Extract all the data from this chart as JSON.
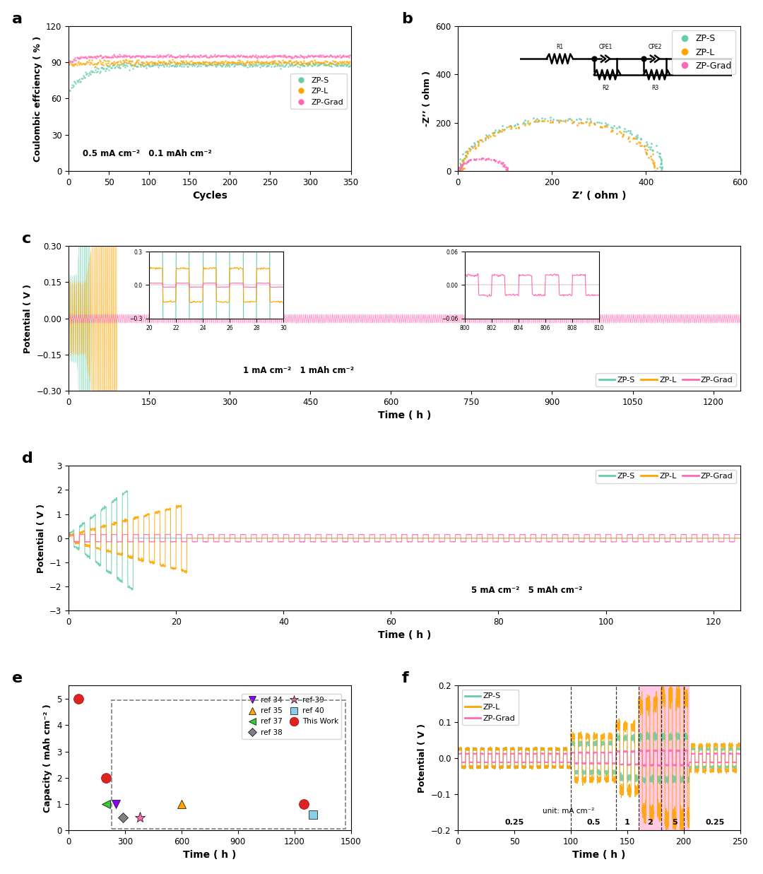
{
  "colors": {
    "ZP-S": "#66CDAA",
    "ZP-L": "#FFA500",
    "ZP-Grad": "#FF69B4"
  },
  "panel_a": {
    "xlabel": "Cycles",
    "ylabel": "Coulombic effciency ( % )",
    "ylim": [
      0,
      120
    ],
    "yticks": [
      0,
      30,
      60,
      90,
      120
    ],
    "xlim": [
      0,
      350
    ],
    "xticks": [
      0,
      50,
      100,
      150,
      200,
      250,
      300,
      350
    ],
    "annotation": "0.5 mA cm⁻²   0.1 mAh cm⁻²"
  },
  "panel_b": {
    "xlabel": "Z’ ( ohm )",
    "ylabel": "-Z’’ ( ohm )",
    "ylim": [
      0,
      600
    ],
    "yticks": [
      0,
      200,
      400,
      600
    ],
    "xlim": [
      0,
      600
    ],
    "xticks": [
      0,
      200,
      400,
      600
    ]
  },
  "panel_c": {
    "xlabel": "Time ( h )",
    "ylabel": "Potential ( V )",
    "ylim": [
      -0.3,
      0.3
    ],
    "yticks": [
      -0.3,
      -0.15,
      0.0,
      0.15,
      0.3
    ],
    "xlim": [
      0,
      1250
    ],
    "xticks": [
      0,
      150,
      300,
      450,
      600,
      750,
      900,
      1050,
      1200
    ],
    "annotation": "1 mA cm⁻²   1 mAh cm⁻²"
  },
  "panel_d": {
    "xlabel": "Time ( h )",
    "ylabel": "Potential ( V )",
    "ylim": [
      -3,
      3
    ],
    "yticks": [
      -3,
      -2,
      -1,
      0,
      1,
      2,
      3
    ],
    "xlim": [
      0,
      125
    ],
    "xticks": [
      0,
      20,
      40,
      60,
      80,
      100,
      120
    ],
    "annotation": "5 mA cm⁻²   5 mAh cm⁻²"
  },
  "panel_e": {
    "xlabel": "Time ( h )",
    "ylabel": "Capacity ( mAh cm⁻² )",
    "ylim": [
      0,
      5.5
    ],
    "yticks": [
      0,
      1,
      2,
      3,
      4,
      5
    ],
    "xlim": [
      0,
      1500
    ],
    "xticks": [
      0,
      300,
      600,
      900,
      1200,
      1500
    ]
  },
  "panel_f": {
    "xlabel": "Time ( h )",
    "ylabel": "Potential ( V )",
    "ylim": [
      -0.2,
      0.2
    ],
    "yticks": [
      -0.2,
      -0.1,
      0.0,
      0.1,
      0.2
    ],
    "xlim": [
      0,
      250
    ],
    "xticks": [
      0,
      50,
      100,
      150,
      200,
      250
    ],
    "rate_labels": [
      "0.25",
      "0.5",
      "1",
      "2",
      "5",
      "0.25"
    ],
    "vlines": [
      100,
      140,
      160,
      180,
      200
    ]
  }
}
